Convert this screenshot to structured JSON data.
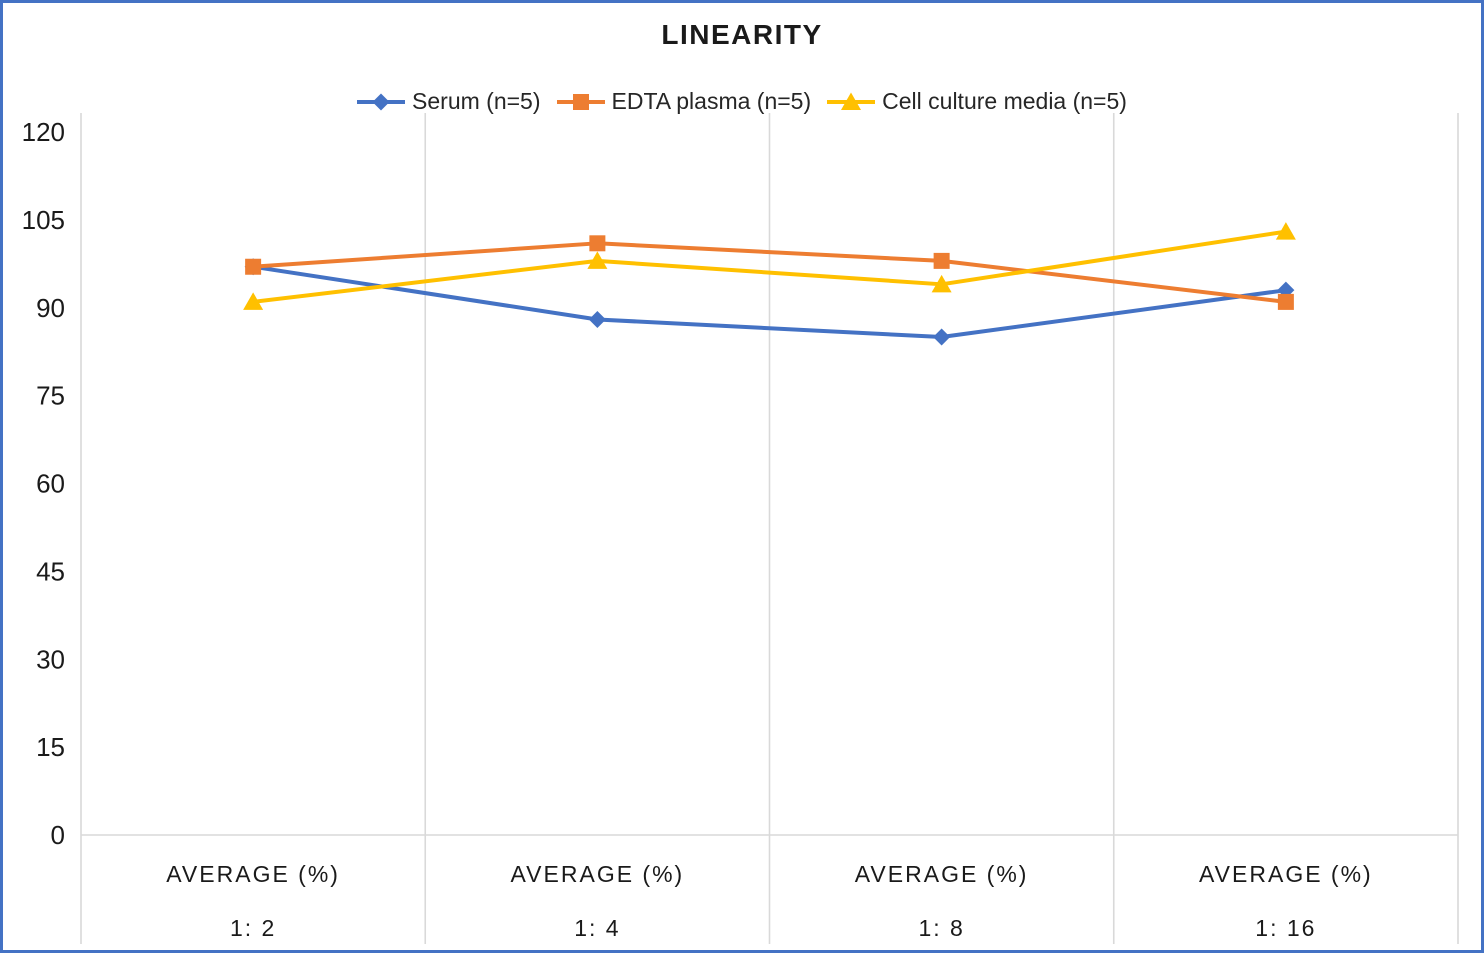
{
  "title": "LINEARITY",
  "chart_data": {
    "type": "line",
    "title": "LINEARITY",
    "y_axis": {
      "ticks": [
        0,
        15,
        30,
        45,
        60,
        75,
        90,
        105,
        120
      ],
      "min": 0,
      "max": 120
    },
    "x_axis": {
      "group_label": "AVERAGE (%)",
      "categories": [
        "1:  2",
        "1:  4",
        "1:  8",
        "1:  16"
      ]
    },
    "grid": "vertical-category-boundaries-only",
    "legend_position": "top-center",
    "series": [
      {
        "name": "Serum (n=5)",
        "color": "#4472C4",
        "marker": "diamond",
        "values": [
          97,
          88,
          85,
          93
        ]
      },
      {
        "name": "EDTA plasma (n=5)",
        "color": "#ED7D31",
        "marker": "square",
        "values": [
          97,
          101,
          98,
          91
        ]
      },
      {
        "name": "Cell culture media (n=5)",
        "color": "#FFC000",
        "marker": "triangle",
        "values": [
          91,
          98,
          94,
          103
        ]
      }
    ]
  },
  "colors": {
    "border": "#4472C4",
    "gridline": "#D9D9D9",
    "text": "#1A1A1A",
    "background": "#FFFFFF"
  }
}
